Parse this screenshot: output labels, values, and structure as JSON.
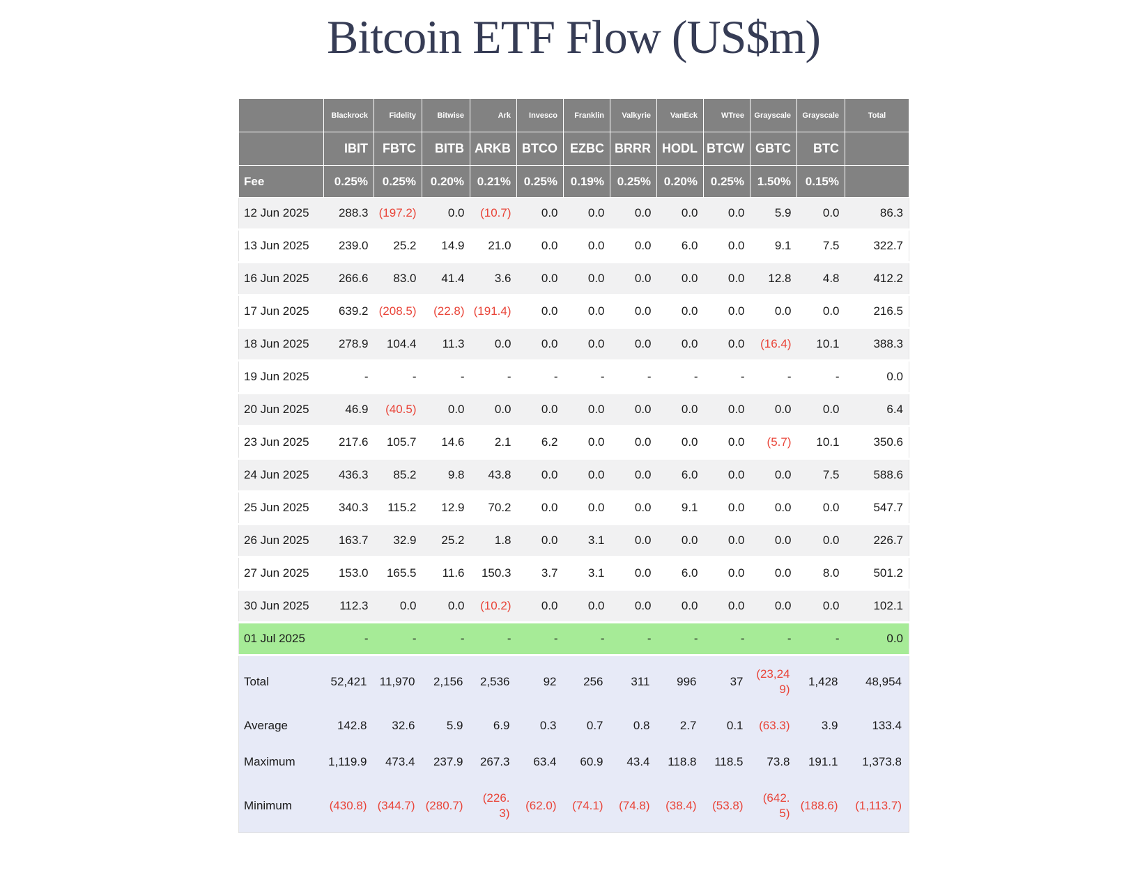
{
  "title": "Bitcoin ETF Flow (US$m)",
  "colors": {
    "header_bg": "#828282",
    "row_alt": "#f1f1f2",
    "highlight_green": "#a6eb97",
    "summary_bg": "#e7eaf7",
    "negative_red": "#e94438",
    "title_color": "#363c55"
  },
  "chart_data": {
    "type": "table",
    "title": "Bitcoin ETF Flow (US$m)",
    "providers": [
      "Blackrock",
      "Fidelity",
      "Bitwise",
      "Ark",
      "Invesco",
      "Franklin",
      "Valkyrie",
      "VanEck",
      "WTree",
      "Grayscale",
      "Grayscale"
    ],
    "tickers": [
      "IBIT",
      "FBTC",
      "BITB",
      "ARKB",
      "BTCO",
      "EZBC",
      "BRRR",
      "HODL",
      "BTCW",
      "GBTC",
      "BTC"
    ],
    "total_column_label": "Total",
    "fee_row_label": "Fee",
    "fees": [
      "0.25%",
      "0.25%",
      "0.20%",
      "0.21%",
      "0.25%",
      "0.19%",
      "0.25%",
      "0.20%",
      "0.25%",
      "1.50%",
      "0.15%"
    ],
    "rows": [
      {
        "date": "12 Jun 2025",
        "values": [
          "288.3",
          "(197.2)",
          "0.0",
          "(10.7)",
          "0.0",
          "0.0",
          "0.0",
          "0.0",
          "0.0",
          "5.9",
          "0.0"
        ],
        "total": "86.3",
        "highlight": false
      },
      {
        "date": "13 Jun 2025",
        "values": [
          "239.0",
          "25.2",
          "14.9",
          "21.0",
          "0.0",
          "0.0",
          "0.0",
          "6.0",
          "0.0",
          "9.1",
          "7.5"
        ],
        "total": "322.7",
        "highlight": false
      },
      {
        "date": "16 Jun 2025",
        "values": [
          "266.6",
          "83.0",
          "41.4",
          "3.6",
          "0.0",
          "0.0",
          "0.0",
          "0.0",
          "0.0",
          "12.8",
          "4.8"
        ],
        "total": "412.2",
        "highlight": false
      },
      {
        "date": "17 Jun 2025",
        "values": [
          "639.2",
          "(208.5)",
          "(22.8)",
          "(191.4)",
          "0.0",
          "0.0",
          "0.0",
          "0.0",
          "0.0",
          "0.0",
          "0.0"
        ],
        "total": "216.5",
        "highlight": false
      },
      {
        "date": "18 Jun 2025",
        "values": [
          "278.9",
          "104.4",
          "11.3",
          "0.0",
          "0.0",
          "0.0",
          "0.0",
          "0.0",
          "0.0",
          "(16.4)",
          "10.1"
        ],
        "total": "388.3",
        "highlight": false
      },
      {
        "date": "19 Jun 2025",
        "values": [
          "-",
          "-",
          "-",
          "-",
          "-",
          "-",
          "-",
          "-",
          "-",
          "-",
          "-"
        ],
        "total": "0.0",
        "highlight": false
      },
      {
        "date": "20 Jun 2025",
        "values": [
          "46.9",
          "(40.5)",
          "0.0",
          "0.0",
          "0.0",
          "0.0",
          "0.0",
          "0.0",
          "0.0",
          "0.0",
          "0.0"
        ],
        "total": "6.4",
        "highlight": false
      },
      {
        "date": "23 Jun 2025",
        "values": [
          "217.6",
          "105.7",
          "14.6",
          "2.1",
          "6.2",
          "0.0",
          "0.0",
          "0.0",
          "0.0",
          "(5.7)",
          "10.1"
        ],
        "total": "350.6",
        "highlight": false
      },
      {
        "date": "24 Jun 2025",
        "values": [
          "436.3",
          "85.2",
          "9.8",
          "43.8",
          "0.0",
          "0.0",
          "0.0",
          "6.0",
          "0.0",
          "0.0",
          "7.5"
        ],
        "total": "588.6",
        "highlight": false
      },
      {
        "date": "25 Jun 2025",
        "values": [
          "340.3",
          "115.2",
          "12.9",
          "70.2",
          "0.0",
          "0.0",
          "0.0",
          "9.1",
          "0.0",
          "0.0",
          "0.0"
        ],
        "total": "547.7",
        "highlight": false
      },
      {
        "date": "26 Jun 2025",
        "values": [
          "163.7",
          "32.9",
          "25.2",
          "1.8",
          "0.0",
          "3.1",
          "0.0",
          "0.0",
          "0.0",
          "0.0",
          "0.0"
        ],
        "total": "226.7",
        "highlight": false
      },
      {
        "date": "27 Jun 2025",
        "values": [
          "153.0",
          "165.5",
          "11.6",
          "150.3",
          "3.7",
          "3.1",
          "0.0",
          "6.0",
          "0.0",
          "0.0",
          "8.0"
        ],
        "total": "501.2",
        "highlight": false
      },
      {
        "date": "30 Jun 2025",
        "values": [
          "112.3",
          "0.0",
          "0.0",
          "(10.2)",
          "0.0",
          "0.0",
          "0.0",
          "0.0",
          "0.0",
          "0.0",
          "0.0"
        ],
        "total": "102.1",
        "highlight": false
      },
      {
        "date": "01 Jul 2025",
        "values": [
          "-",
          "-",
          "-",
          "-",
          "-",
          "-",
          "-",
          "-",
          "-",
          "-",
          "-"
        ],
        "total": "0.0",
        "highlight": true
      }
    ],
    "summary_rows": [
      {
        "label": "Total",
        "values": [
          "52,421",
          "11,970",
          "2,156",
          "2,536",
          "92",
          "256",
          "311",
          "996",
          "37",
          "(23,249)",
          "1,428"
        ],
        "total": "48,954"
      },
      {
        "label": "Average",
        "values": [
          "142.8",
          "32.6",
          "5.9",
          "6.9",
          "0.3",
          "0.7",
          "0.8",
          "2.7",
          "0.1",
          "(63.3)",
          "3.9"
        ],
        "total": "133.4"
      },
      {
        "label": "Maximum",
        "values": [
          "1,119.9",
          "473.4",
          "237.9",
          "267.3",
          "63.4",
          "60.9",
          "43.4",
          "118.8",
          "118.5",
          "73.8",
          "191.1"
        ],
        "total": "1,373.8"
      },
      {
        "label": "Minimum",
        "values": [
          "(430.8)",
          "(344.7)",
          "(280.7)",
          "(226.3)",
          "(62.0)",
          "(74.1)",
          "(74.8)",
          "(38.4)",
          "(53.8)",
          "(642.5)",
          "(188.6)"
        ],
        "total": "(1,113.7)"
      }
    ]
  }
}
